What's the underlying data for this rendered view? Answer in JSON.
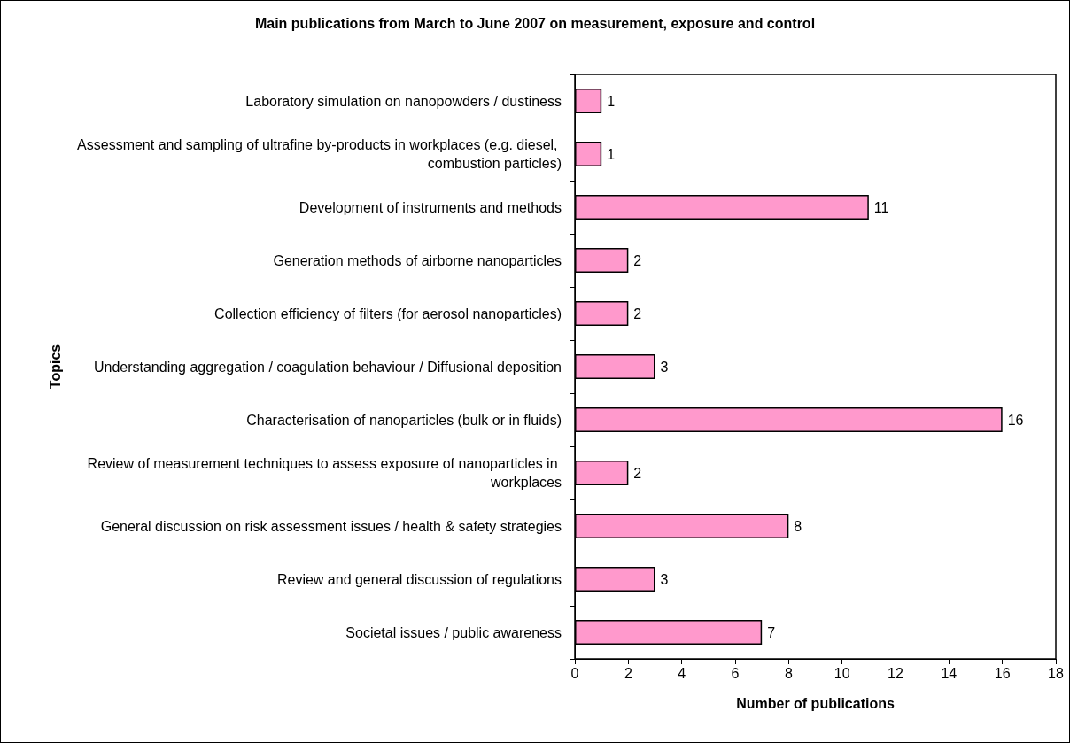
{
  "chart_data": {
    "type": "bar",
    "orientation": "horizontal",
    "title": "Main publications from March to June 2007 on measurement, exposure and control",
    "xlabel": "Number of publications",
    "ylabel": "Topics",
    "categories": [
      "Laboratory simulation on nanopowders / dustiness",
      "Assessment and sampling of ultrafine by-products in workplaces (e.g. diesel, combustion particles)",
      "Development of instruments and methods",
      "Generation methods of airborne nanoparticles",
      "Collection efficiency of filters (for aerosol nanoparticles)",
      "Understanding aggregation / coagulation behaviour / Diffusional deposition",
      "Characterisation of nanoparticles (bulk or in fluids)",
      "Review of measurement techniques to assess exposure of nanoparticles in workplaces",
      "General discussion on risk assessment issues / health & safety strategies",
      "Review and general discussion of regulations",
      "Societal issues / public awareness"
    ],
    "values": [
      1,
      1,
      11,
      2,
      2,
      3,
      16,
      2,
      8,
      3,
      7
    ],
    "color": "#ff99cc",
    "xlim": [
      0,
      18
    ],
    "xticks": [
      0,
      2,
      4,
      6,
      8,
      10,
      12,
      14,
      16,
      18
    ],
    "grid": false,
    "data_labels": true
  }
}
